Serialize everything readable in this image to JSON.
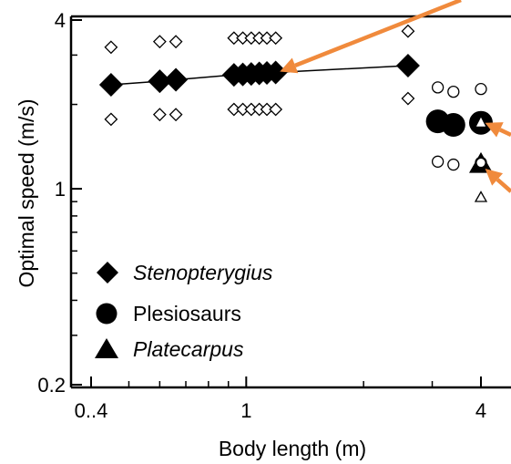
{
  "chart_data": {
    "type": "scatter",
    "xlabel": "Body length (m)",
    "ylabel": "Optimal speed (m/s)",
    "x_scale": "log",
    "y_scale": "log",
    "xlim": [
      0.4,
      4.5
    ],
    "ylim": [
      0.2,
      4
    ],
    "x_ticks": [
      {
        "value": 0.4,
        "label": "0..4"
      },
      {
        "value": 1,
        "label": "1"
      },
      {
        "value": 4,
        "label": "4"
      }
    ],
    "y_ticks": [
      {
        "value": 0.2,
        "label": "0.2"
      },
      {
        "value": 1,
        "label": "1"
      },
      {
        "value": 4,
        "label": "4"
      }
    ],
    "legend": {
      "placement": "lower-left",
      "entries": [
        {
          "label": "Stenopterygius",
          "marker": "diamond",
          "italic": true
        },
        {
          "label": "Plesiosaurs",
          "marker": "circle",
          "italic": false
        },
        {
          "label": "Platecarpus",
          "marker": "triangle",
          "italic": true
        }
      ]
    },
    "series": [
      {
        "marker": "diamond",
        "line": true,
        "points": [
          [
            0.45,
            2.35
          ],
          [
            0.6,
            2.42
          ],
          [
            0.66,
            2.45
          ],
          [
            0.93,
            2.55
          ],
          [
            0.98,
            2.56
          ],
          [
            1.03,
            2.57
          ],
          [
            1.08,
            2.58
          ],
          [
            1.13,
            2.59
          ],
          [
            1.19,
            2.6
          ],
          [
            2.6,
            2.75
          ]
        ],
        "upper": [
          [
            0.45,
            3.2
          ],
          [
            0.6,
            3.35
          ],
          [
            0.66,
            3.35
          ],
          [
            0.93,
            3.45
          ],
          [
            0.98,
            3.45
          ],
          [
            1.03,
            3.45
          ],
          [
            1.08,
            3.45
          ],
          [
            1.13,
            3.45
          ],
          [
            1.19,
            3.45
          ],
          [
            2.6,
            3.65
          ]
        ],
        "lower": [
          [
            0.45,
            1.77
          ],
          [
            0.6,
            1.84
          ],
          [
            0.66,
            1.84
          ],
          [
            0.93,
            1.92
          ],
          [
            0.98,
            1.92
          ],
          [
            1.03,
            1.92
          ],
          [
            1.08,
            1.92
          ],
          [
            1.13,
            1.92
          ],
          [
            1.19,
            1.92
          ],
          [
            2.6,
            2.1
          ]
        ]
      },
      {
        "marker": "circle",
        "line": false,
        "points": [
          [
            3.1,
            1.74
          ],
          [
            3.4,
            1.69
          ],
          [
            4.0,
            1.72
          ]
        ],
        "upper": [
          [
            3.1,
            2.3
          ],
          [
            3.4,
            2.22
          ],
          [
            4.0,
            2.27
          ]
        ],
        "lower": [
          [
            3.1,
            1.25
          ],
          [
            3.4,
            1.22
          ],
          [
            4.0,
            1.24
          ]
        ]
      },
      {
        "marker": "triangle",
        "line": false,
        "points": [
          [
            4.0,
            1.22
          ]
        ],
        "upper": [
          [
            4.0,
            1.72
          ]
        ],
        "lower": [
          [
            4.0,
            0.93
          ]
        ]
      }
    ],
    "annotations": [
      {
        "type": "arrow",
        "color": "#f08a3c",
        "target": [
          1.22,
          2.62
        ]
      },
      {
        "type": "arrow",
        "color": "#f08a3c",
        "target": [
          4.1,
          1.72
        ]
      },
      {
        "type": "arrow",
        "color": "#f08a3c",
        "target": [
          4.1,
          1.18
        ]
      }
    ]
  }
}
